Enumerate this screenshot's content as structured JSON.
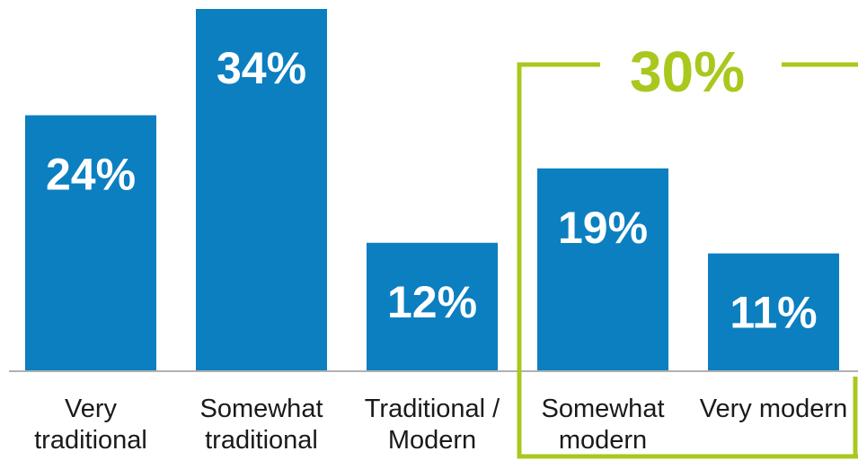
{
  "chart_data": {
    "type": "bar",
    "categories": [
      [
        "Very",
        "traditional"
      ],
      [
        "Somewhat",
        "traditional"
      ],
      [
        "Traditional /",
        "Modern"
      ],
      [
        "Somewhat",
        "modern"
      ],
      [
        "Very modern"
      ]
    ],
    "values": [
      24,
      34,
      12,
      19,
      11
    ],
    "value_labels": [
      "24%",
      "34%",
      "12%",
      "19%",
      "11%"
    ],
    "ylim": [
      0,
      34
    ],
    "grid": false,
    "legend": "none",
    "bar_color": "#0b7fc0",
    "highlight_group": {
      "label": "30%",
      "categories": [
        3,
        4
      ],
      "color": "#a8c81e"
    },
    "axis_color": "#b0b0b0"
  }
}
